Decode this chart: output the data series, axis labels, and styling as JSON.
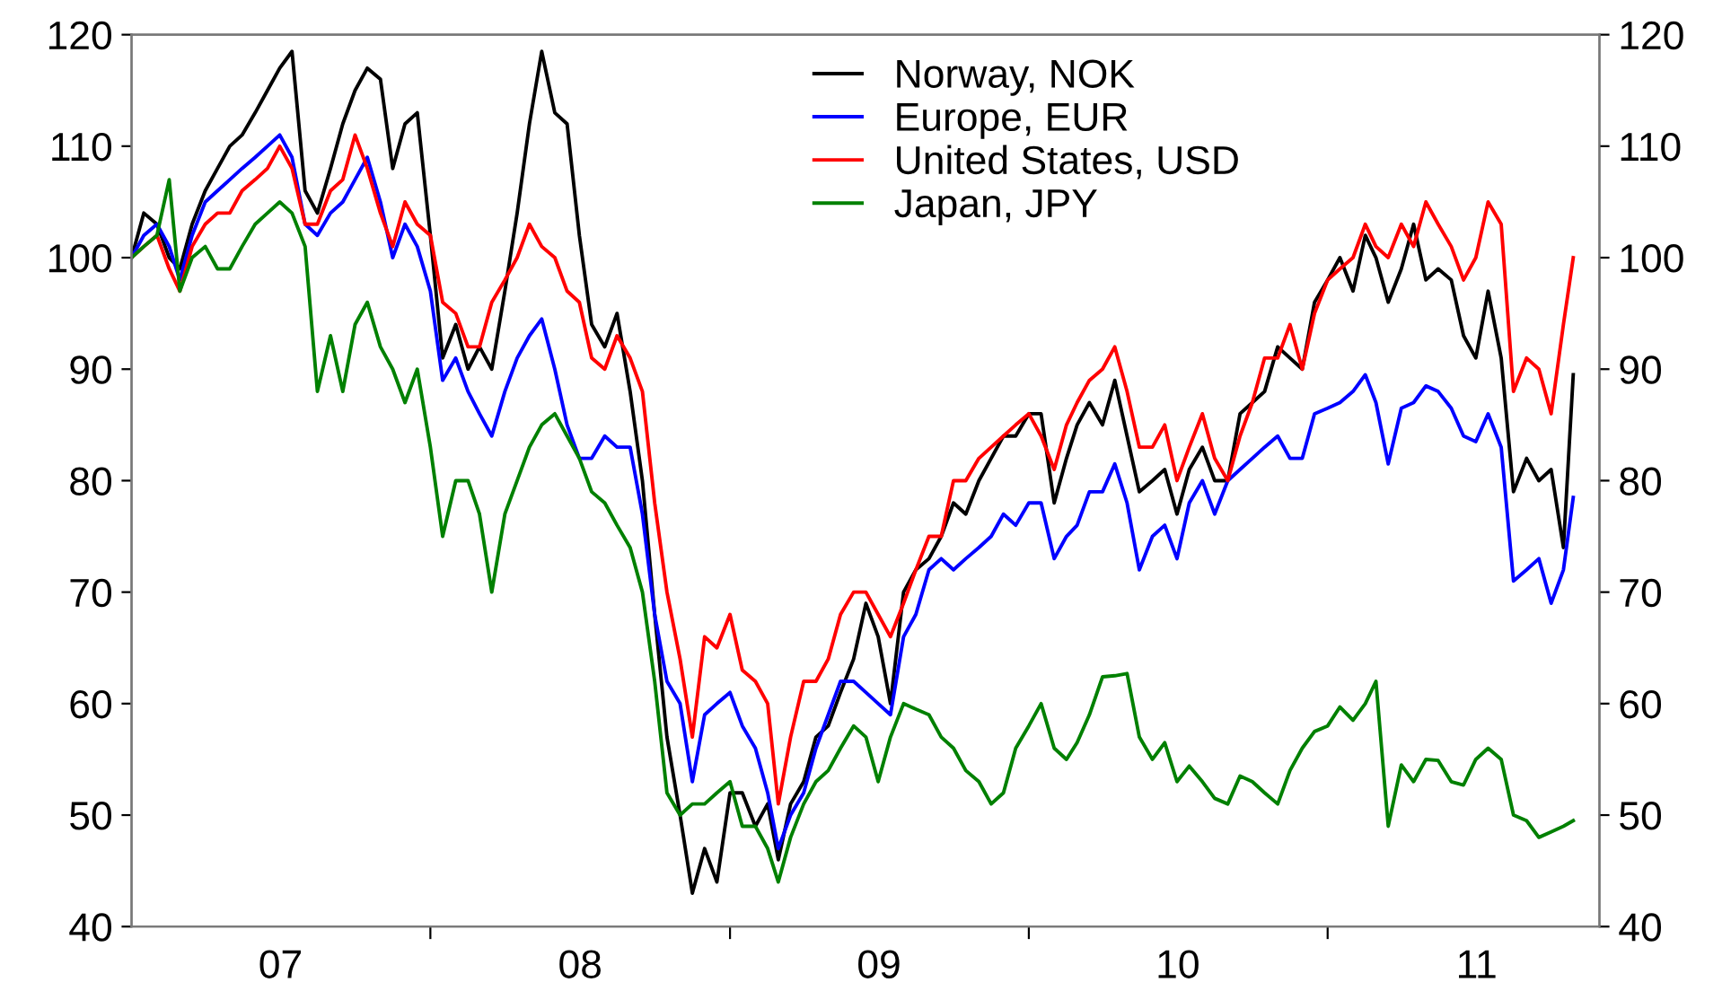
{
  "chart_data": {
    "type": "line",
    "x": [
      "2007-01-01",
      "2007-01-16",
      "2007-02-01",
      "2007-02-16",
      "2007-03-01",
      "2007-03-16",
      "2007-04-01",
      "2007-04-16",
      "2007-05-01",
      "2007-05-16",
      "2007-06-01",
      "2007-06-16",
      "2007-07-01",
      "2007-07-16",
      "2007-08-01",
      "2007-08-16",
      "2007-09-01",
      "2007-09-16",
      "2007-10-01",
      "2007-10-16",
      "2007-11-01",
      "2007-11-16",
      "2007-12-01",
      "2007-12-16",
      "2008-01-01",
      "2008-01-16",
      "2008-02-01",
      "2008-02-16",
      "2008-03-01",
      "2008-03-16",
      "2008-04-01",
      "2008-04-16",
      "2008-05-01",
      "2008-05-16",
      "2008-06-01",
      "2008-06-16",
      "2008-07-01",
      "2008-07-16",
      "2008-08-01",
      "2008-08-16",
      "2008-09-01",
      "2008-09-16",
      "2008-10-01",
      "2008-10-16",
      "2008-11-01",
      "2008-11-16",
      "2008-12-01",
      "2008-12-16",
      "2009-01-01",
      "2009-01-16",
      "2009-02-01",
      "2009-02-16",
      "2009-03-01",
      "2009-03-16",
      "2009-04-01",
      "2009-04-16",
      "2009-05-01",
      "2009-05-16",
      "2009-06-01",
      "2009-06-16",
      "2009-07-01",
      "2009-07-16",
      "2009-08-01",
      "2009-08-16",
      "2009-09-01",
      "2009-09-16",
      "2009-10-01",
      "2009-10-16",
      "2009-11-01",
      "2009-11-16",
      "2009-12-01",
      "2009-12-16",
      "2010-01-01",
      "2010-01-16",
      "2010-02-01",
      "2010-02-16",
      "2010-03-01",
      "2010-03-16",
      "2010-04-01",
      "2010-04-16",
      "2010-05-01",
      "2010-05-16",
      "2010-06-01",
      "2010-06-16",
      "2010-07-01",
      "2010-07-16",
      "2010-08-01",
      "2010-08-16",
      "2010-09-01",
      "2010-09-16",
      "2010-10-01",
      "2010-10-16",
      "2010-11-01",
      "2010-11-16",
      "2010-12-01",
      "2010-12-16",
      "2011-01-01",
      "2011-01-16",
      "2011-02-01",
      "2011-02-16",
      "2011-03-01",
      "2011-03-16",
      "2011-04-01",
      "2011-04-16",
      "2011-05-01",
      "2011-05-16",
      "2011-06-01",
      "2011-06-16",
      "2011-07-01",
      "2011-07-16",
      "2011-08-01",
      "2011-08-16",
      "2011-09-01",
      "2011-09-16",
      "2011-10-01",
      "2011-10-16",
      "2011-10-28"
    ],
    "series": [
      {
        "name": "Norway, NOK",
        "color": "#000000",
        "values": [
          100,
          104,
          103,
          100,
          99,
          103,
          106,
          108,
          110,
          111,
          113,
          115,
          117,
          118.5,
          106,
          104,
          108,
          112,
          115,
          117,
          116,
          108,
          112,
          113,
          102,
          91,
          94,
          90,
          92,
          90,
          97,
          104,
          112,
          118.5,
          113,
          112,
          102,
          94,
          92,
          95,
          88,
          80,
          68,
          57,
          50,
          43,
          47,
          44,
          52,
          52,
          49,
          51,
          46,
          51,
          53,
          57,
          58,
          61,
          64,
          69,
          66,
          60,
          70,
          72,
          73,
          75,
          78,
          77,
          80,
          82,
          84,
          84,
          86,
          86,
          78,
          82,
          85,
          87,
          85,
          89,
          84,
          79,
          80,
          81,
          77,
          81,
          83,
          80,
          80,
          86,
          87,
          88,
          92,
          91,
          90,
          96,
          98,
          100,
          97,
          102,
          100,
          96,
          99,
          103,
          98,
          99,
          98,
          93,
          91,
          97,
          91,
          79,
          82,
          80,
          81,
          74,
          89.5
        ]
      },
      {
        "name": "Europe, EUR",
        "color": "#0000ff",
        "values": [
          100,
          102,
          103,
          101,
          98,
          102,
          105,
          106,
          107,
          108,
          109,
          110,
          111,
          109,
          103,
          102,
          104,
          105,
          107,
          109,
          105,
          100,
          103,
          101,
          97,
          89,
          91,
          88,
          86,
          84,
          88,
          91,
          93,
          94.5,
          90,
          85,
          82,
          82,
          84,
          83,
          83,
          77,
          68,
          62,
          60,
          53,
          59,
          60,
          61,
          58,
          56,
          52,
          47,
          50,
          52,
          56,
          59,
          62,
          62,
          61,
          60,
          59,
          66,
          68,
          72,
          73,
          72,
          73,
          74,
          75,
          77,
          76,
          78,
          78,
          73,
          75,
          76,
          79,
          79,
          81.5,
          78,
          72,
          75,
          76,
          73,
          78,
          80,
          77,
          80,
          81,
          82,
          83,
          84,
          82,
          82,
          86,
          86.5,
          87,
          88,
          89.5,
          87,
          81.5,
          86.5,
          87,
          88.5,
          88,
          86.5,
          84,
          83.5,
          86,
          83,
          71,
          72,
          73,
          69,
          72,
          78.5
        ]
      },
      {
        "name": "United States, USD",
        "color": "#ff0000",
        "values": [
          100,
          101,
          102,
          99,
          97,
          101,
          103,
          104,
          104,
          106,
          107,
          108,
          110,
          108,
          103,
          103,
          106,
          107,
          111,
          108,
          104,
          101,
          105,
          103,
          102,
          96,
          95,
          92,
          92,
          96,
          98,
          100,
          103,
          101,
          100,
          97,
          96,
          91,
          90,
          93,
          91,
          88,
          78,
          70,
          64,
          57,
          66,
          65,
          68,
          63,
          62,
          60,
          51,
          57,
          62,
          62,
          64,
          68,
          70,
          70,
          68,
          66,
          69,
          72,
          75,
          75,
          80,
          80,
          82,
          83,
          84,
          85,
          86,
          84,
          81,
          85,
          87,
          89,
          90,
          92,
          88,
          83,
          83,
          85,
          80,
          83,
          86,
          82,
          80,
          84,
          87,
          91,
          91,
          94,
          90,
          95,
          98,
          99,
          100,
          103,
          101,
          100,
          103,
          101,
          105,
          103,
          101,
          98,
          100,
          105,
          103,
          88,
          91,
          90,
          86,
          94,
          100
        ]
      },
      {
        "name": "Japan, JPY",
        "color": "#008000",
        "values": [
          100,
          101,
          102,
          107,
          97,
          100,
          101,
          99,
          99,
          101,
          103,
          104,
          105,
          104,
          101,
          88,
          93,
          88,
          94,
          96,
          92,
          90,
          87,
          90,
          83,
          75,
          80,
          80,
          77,
          70,
          77,
          80,
          83,
          85,
          86,
          84,
          82,
          79,
          78,
          76,
          74,
          70,
          62,
          52,
          50,
          51,
          51,
          52,
          53,
          49,
          49,
          47,
          44,
          48,
          51,
          53,
          54,
          56,
          58,
          57,
          53,
          57,
          60,
          59.5,
          59,
          57,
          56,
          54,
          53,
          51,
          52,
          56,
          58,
          60,
          56,
          55,
          56.5,
          59,
          62.4,
          62.5,
          62.7,
          57,
          55,
          56.5,
          53,
          54.4,
          53,
          51.5,
          51,
          53.5,
          53,
          52,
          51,
          54,
          56,
          57.5,
          58,
          59.7,
          58.5,
          60,
          62,
          49,
          54.5,
          53,
          55,
          54.9,
          53,
          52.7,
          55,
          56,
          55,
          50,
          49.5,
          48,
          48.5,
          49,
          49.5
        ]
      }
    ],
    "xlim": [
      "2007-01-01",
      "2011-11-29"
    ],
    "xticks": [
      {
        "value": "2007-07-02",
        "label": "07"
      },
      {
        "value": "2008-01-01",
        "label": null
      },
      {
        "value": "2008-07-02",
        "label": "08"
      },
      {
        "value": "2009-01-01",
        "label": null
      },
      {
        "value": "2009-07-02",
        "label": "09"
      },
      {
        "value": "2010-01-01",
        "label": null
      },
      {
        "value": "2010-07-02",
        "label": "10"
      },
      {
        "value": "2011-01-01",
        "label": null
      },
      {
        "value": "2011-07-02",
        "label": "11"
      }
    ],
    "ylim": [
      40,
      120
    ],
    "yticks": [
      40,
      50,
      60,
      70,
      80,
      90,
      100,
      110,
      120
    ],
    "y2lim": [
      40,
      120
    ],
    "y2ticks": [
      40,
      50,
      60,
      70,
      80,
      90,
      100,
      110,
      120
    ],
    "legend": "top",
    "grid": false,
    "line_style": "solid",
    "marker": "none"
  }
}
